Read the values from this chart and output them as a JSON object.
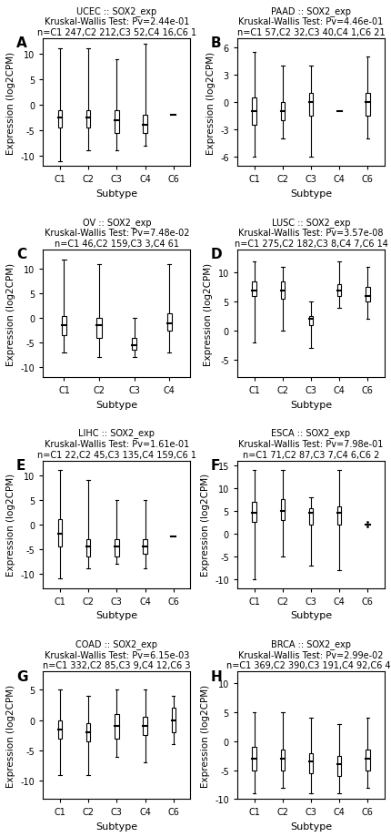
{
  "panels": [
    {
      "label": "A",
      "title": "UCEC :: SOX2_exp",
      "subtitle": "Kruskal-Wallis Test: Pv=2.44e-01",
      "subtitle2": "n=C1 247,C2 212,C3 52,C4 16,C6 1",
      "categories": [
        "C1",
        "C2",
        "C3",
        "C4",
        "C6"
      ],
      "colors": [
        "#F08080",
        "#8FBC45",
        "#40E0D0",
        "#9370DB",
        "#DA70D6"
      ],
      "ylim": [
        -12,
        13
      ],
      "yticks": [
        -10,
        -5,
        0,
        5,
        10
      ],
      "ylabel": "Expression (log2CPM)",
      "small_cats": [
        "C6"
      ],
      "cat_params": {
        "C1": {
          "median": -2.5,
          "q1": -4.5,
          "q3": -1.0,
          "whislo": -11,
          "whishi": 11,
          "std": 3.5
        },
        "C2": {
          "median": -2.5,
          "q1": -4.5,
          "q3": -1.0,
          "whislo": -9,
          "whishi": 11,
          "std": 3.0
        },
        "C3": {
          "median": -3.0,
          "q1": -5.5,
          "q3": -1.0,
          "whislo": -9,
          "whishi": 9,
          "std": 3.5
        },
        "C4": {
          "median": -4.0,
          "q1": -5.5,
          "q3": -2.0,
          "whislo": -8,
          "whishi": 12,
          "std": 4.0
        },
        "C6": {
          "median": -2.0,
          "q1": -2.0,
          "q3": -2.0,
          "whislo": -2.0,
          "whishi": -2.0,
          "std": 0.1
        }
      }
    },
    {
      "label": "B",
      "title": "PAAD :: SOX2_exp",
      "subtitle": "Kruskal-Wallis Test: Pv=4.46e-01",
      "subtitle2": "n=C1 57,C2 32,C3 40,C4 1,C6 21",
      "categories": [
        "C1",
        "C2",
        "C3",
        "C4",
        "C6"
      ],
      "colors": [
        "#F08080",
        "#8FBC45",
        "#40E0D0",
        "#9370DB",
        "#DA70D6"
      ],
      "ylim": [
        -7,
        7
      ],
      "yticks": [
        -6,
        -3,
        0,
        3,
        6
      ],
      "ylabel": "Expression (log2CPM)",
      "small_cats": [
        "C4"
      ],
      "cat_params": {
        "C1": {
          "median": -1.0,
          "q1": -2.5,
          "q3": 0.5,
          "whislo": -6,
          "whishi": 5.5,
          "std": 2.2
        },
        "C2": {
          "median": -1.0,
          "q1": -2.0,
          "q3": 0.0,
          "whislo": -4,
          "whishi": 4,
          "std": 1.8
        },
        "C3": {
          "median": 0.0,
          "q1": -1.5,
          "q3": 1.0,
          "whislo": -6,
          "whishi": 4,
          "std": 2.5
        },
        "C4": {
          "median": -1.0,
          "q1": -1.0,
          "q3": -1.0,
          "whislo": -1.0,
          "whishi": -1.0,
          "std": 0.1
        },
        "C6": {
          "median": 0.0,
          "q1": -1.5,
          "q3": 1.0,
          "whislo": -4,
          "whishi": 5,
          "std": 2.0
        }
      }
    },
    {
      "label": "C",
      "title": "OV :: SOX2_exp",
      "subtitle": "Kruskal-Wallis Test: Pv=7.48e-02",
      "subtitle2": "n=C1 46,C2 159,C3 3,C4 61",
      "categories": [
        "C1",
        "C2",
        "C3",
        "C4"
      ],
      "colors": [
        "#F08080",
        "#8FBC45",
        "#40E0D0",
        "#9370DB"
      ],
      "ylim": [
        -12,
        14
      ],
      "yticks": [
        -10,
        -5,
        0,
        5,
        10
      ],
      "ylabel": "Expression (log2CPM)",
      "small_cats": [],
      "cat_params": {
        "C1": {
          "median": -1.5,
          "q1": -3.5,
          "q3": 0.5,
          "whislo": -7,
          "whishi": 12,
          "std": 3.5
        },
        "C2": {
          "median": -1.5,
          "q1": -4.0,
          "q3": 0.0,
          "whislo": -8,
          "whishi": 11,
          "std": 3.5
        },
        "C3": {
          "median": -5.5,
          "q1": -6.5,
          "q3": -4.0,
          "whislo": -8,
          "whishi": 0,
          "std": 2.0
        },
        "C4": {
          "median": -1.0,
          "q1": -2.5,
          "q3": 1.0,
          "whislo": -7,
          "whishi": 11,
          "std": 4.0
        }
      }
    },
    {
      "label": "D",
      "title": "LUSC :: SOX2_exp",
      "subtitle": "Kruskal-Wallis Test: Pv=3.57e-08",
      "subtitle2": "n=C1 275,C2 182,C3 8,C4 7,C6 14",
      "categories": [
        "C1",
        "C2",
        "C3",
        "C4",
        "C6"
      ],
      "colors": [
        "#F08080",
        "#8FBC45",
        "#40E0D0",
        "#00BFFF",
        "#DA70D6"
      ],
      "ylim": [
        -8,
        14
      ],
      "yticks": [
        -5,
        0,
        5,
        10
      ],
      "ylabel": "Expression (log2CPM)",
      "small_cats": [],
      "cat_params": {
        "C1": {
          "median": 7.0,
          "q1": 6.0,
          "q3": 8.5,
          "whislo": -2,
          "whishi": 12,
          "std": 3.0
        },
        "C2": {
          "median": 7.0,
          "q1": 5.5,
          "q3": 8.5,
          "whislo": 0,
          "whishi": 11,
          "std": 2.5
        },
        "C3": {
          "median": 2.0,
          "q1": 1.0,
          "q3": 2.5,
          "whislo": -3,
          "whishi": 5,
          "std": 2.0
        },
        "C4": {
          "median": 7.0,
          "q1": 6.0,
          "q3": 8.0,
          "whislo": 4,
          "whishi": 12,
          "std": 2.0
        },
        "C6": {
          "median": 6.0,
          "q1": 5.0,
          "q3": 7.5,
          "whislo": 2,
          "whishi": 11,
          "std": 2.5
        }
      }
    },
    {
      "label": "E",
      "title": "LIHC :: SOX2_exp",
      "subtitle": "Kruskal-Wallis Test: Pv=1.61e-01",
      "subtitle2": "n=C1 22,C2 45,C3 135,C4 159,C6 1",
      "categories": [
        "C1",
        "C2",
        "C3",
        "C4",
        "C6"
      ],
      "colors": [
        "#F08080",
        "#8FBC45",
        "#40E0D0",
        "#9370DB",
        "#DA70D6"
      ],
      "ylim": [
        -13,
        13
      ],
      "yticks": [
        -10,
        -5,
        0,
        5,
        10
      ],
      "ylabel": "Expression (log2CPM)",
      "small_cats": [
        "C6"
      ],
      "cat_params": {
        "C1": {
          "median": -2.0,
          "q1": -4.5,
          "q3": 1.0,
          "whislo": -11,
          "whishi": 11,
          "std": 4.0
        },
        "C2": {
          "median": -4.5,
          "q1": -6.5,
          "q3": -3.0,
          "whislo": -9,
          "whishi": 9,
          "std": 3.5
        },
        "C3": {
          "median": -4.5,
          "q1": -6.5,
          "q3": -3.0,
          "whislo": -8,
          "whishi": 5,
          "std": 3.0
        },
        "C4": {
          "median": -4.5,
          "q1": -6.0,
          "q3": -3.0,
          "whislo": -9,
          "whishi": 5,
          "std": 3.5
        },
        "C6": {
          "median": -2.5,
          "q1": -2.5,
          "q3": -2.5,
          "whislo": -2.5,
          "whishi": -2.5,
          "std": 0.1
        }
      }
    },
    {
      "label": "F",
      "title": "ESCA :: SOX2_exp",
      "subtitle": "Kruskal-Wallis Test: Pv=7.98e-01",
      "subtitle2": "n=C1 71,C2 87,C3 7,C4 6,C6 2",
      "categories": [
        "C1",
        "C2",
        "C3",
        "C4",
        "C6"
      ],
      "colors": [
        "#F08080",
        "#8FBC45",
        "#40E0D0",
        "#9370DB",
        "#DA70D6"
      ],
      "ylim": [
        -12,
        16
      ],
      "yticks": [
        -10,
        -5,
        0,
        5,
        10,
        15
      ],
      "ylabel": "Expression (log2CPM)",
      "small_cats": [
        "C6"
      ],
      "cat_params": {
        "C1": {
          "median": 4.5,
          "q1": 2.5,
          "q3": 7.0,
          "whislo": -10,
          "whishi": 14,
          "std": 4.5
        },
        "C2": {
          "median": 5.0,
          "q1": 3.0,
          "q3": 7.5,
          "whislo": -5,
          "whishi": 14,
          "std": 4.0
        },
        "C3": {
          "median": 4.5,
          "q1": 2.0,
          "q3": 5.5,
          "whislo": -7,
          "whishi": 8,
          "std": 4.0
        },
        "C4": {
          "median": 4.5,
          "q1": 2.0,
          "q3": 6.0,
          "whislo": -8,
          "whishi": 14,
          "std": 5.0
        },
        "C6": {
          "median": 2.0,
          "q1": 1.5,
          "q3": 2.5,
          "whislo": 1.5,
          "whishi": 2.5,
          "std": 0.3
        }
      }
    },
    {
      "label": "G",
      "title": "COAD :: SOX2_exp",
      "subtitle": "Kruskal-Wallis Test: Pv=6.15e-03",
      "subtitle2": "n=C1 332,C2 85,C3 9,C4 12,C6 3",
      "categories": [
        "C1",
        "C2",
        "C3",
        "C4",
        "C6"
      ],
      "colors": [
        "#F08080",
        "#8FBC45",
        "#40E0D0",
        "#9370DB",
        "#DA70D6"
      ],
      "ylim": [
        -13,
        8
      ],
      "yticks": [
        -10,
        -5,
        0,
        5
      ],
      "ylabel": "Expression (log2CPM)",
      "small_cats": [],
      "cat_params": {
        "C1": {
          "median": -1.5,
          "q1": -3.0,
          "q3": 0.0,
          "whislo": -9,
          "whishi": 5,
          "std": 2.8
        },
        "C2": {
          "median": -2.0,
          "q1": -3.5,
          "q3": -0.5,
          "whislo": -9,
          "whishi": 4,
          "std": 3.0
        },
        "C3": {
          "median": -1.0,
          "q1": -3.0,
          "q3": 1.0,
          "whislo": -6,
          "whishi": 5,
          "std": 3.0
        },
        "C4": {
          "median": -1.0,
          "q1": -2.5,
          "q3": 0.5,
          "whislo": -7,
          "whishi": 5,
          "std": 3.0
        },
        "C6": {
          "median": 0.0,
          "q1": -2.0,
          "q3": 2.0,
          "whislo": -4,
          "whishi": 4,
          "std": 2.5
        }
      }
    },
    {
      "label": "H",
      "title": "BRCA :: SOX2_exp",
      "subtitle": "Kruskal-Wallis Test: Pv=2.99e-02",
      "subtitle2": "n=C1 369,C2 390,C3 191,C4 92,C6 40",
      "categories": [
        "C1",
        "C2",
        "C3",
        "C4",
        "C6"
      ],
      "colors": [
        "#F08080",
        "#8FBC45",
        "#40E0D0",
        "#9370DB",
        "#DA70D6"
      ],
      "ylim": [
        -10,
        12
      ],
      "yticks": [
        -10,
        -5,
        0,
        5,
        10
      ],
      "ylabel": "Expression (log2CPM)",
      "small_cats": [],
      "cat_params": {
        "C1": {
          "median": -3.0,
          "q1": -5.0,
          "q3": -1.0,
          "whislo": -9,
          "whishi": 5,
          "std": 3.0
        },
        "C2": {
          "median": -3.0,
          "q1": -5.0,
          "q3": -1.5,
          "whislo": -8,
          "whishi": 5,
          "std": 2.8
        },
        "C3": {
          "median": -3.5,
          "q1": -5.5,
          "q3": -2.0,
          "whislo": -9,
          "whishi": 4,
          "std": 2.8
        },
        "C4": {
          "median": -4.0,
          "q1": -6.0,
          "q3": -2.5,
          "whislo": -9,
          "whishi": 3,
          "std": 3.0
        },
        "C6": {
          "median": -3.0,
          "q1": -5.0,
          "q3": -1.5,
          "whislo": -8,
          "whishi": 4,
          "std": 3.0
        }
      }
    }
  ],
  "fig_bg": "#ffffff",
  "axes_bg": "#ffffff",
  "label_fontsize": 8,
  "title_fontsize": 7,
  "tick_fontsize": 7,
  "xlabel": "Subtype"
}
